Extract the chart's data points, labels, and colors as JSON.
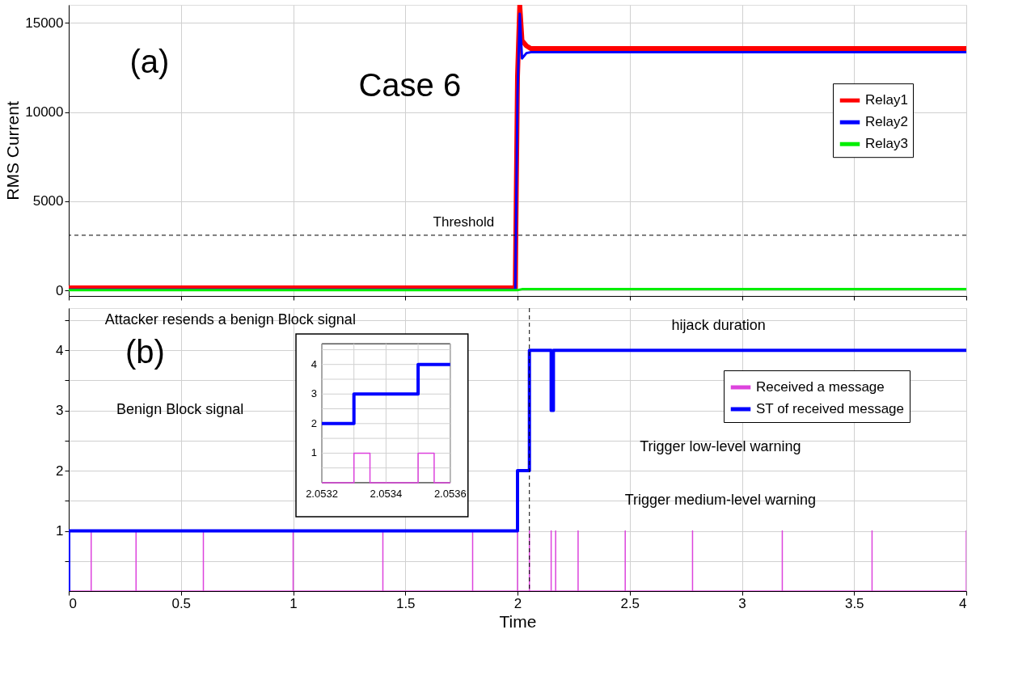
{
  "chart_data": [
    {
      "type": "line",
      "ylabel": "RMS Current",
      "xlim": [
        0,
        4
      ],
      "xticks": [
        0,
        0.5,
        1,
        1.5,
        2,
        2.5,
        3,
        3.5,
        4
      ],
      "ylim": [
        -300,
        16000
      ],
      "yticks": [
        0,
        5000,
        10000,
        15000
      ],
      "grid": true,
      "legend": "top right",
      "tick_labels": "y",
      "series": [
        {
          "name": "Relay1",
          "color": "#ff0000",
          "x": [
            0,
            1.99,
            2.0,
            2.01,
            2.02,
            2.04,
            2.06,
            4
          ],
          "values": [
            150,
            150,
            12000,
            16000,
            14000,
            13700,
            13550,
            13550
          ]
        },
        {
          "name": "Relay2",
          "color": "#0000ff",
          "x": [
            0,
            1.99,
            2.0,
            2.01,
            2.02,
            2.04,
            2.06,
            4
          ],
          "values": [
            50,
            50,
            11000,
            15500,
            13000,
            13300,
            13350,
            13350
          ]
        },
        {
          "name": "Relay3",
          "color": "#00ee00",
          "x": [
            0,
            2.0,
            2.02,
            4
          ],
          "values": [
            30,
            30,
            80,
            80
          ]
        }
      ],
      "ref_lines": [
        {
          "axis": "y",
          "value": 3100,
          "label": "Threshold",
          "color": "#000000",
          "line_style": "dashed"
        }
      ],
      "annotations": [
        "(a)",
        "Case 6"
      ]
    },
    {
      "type": "line",
      "xlabel": "Time",
      "xlim": [
        0,
        4
      ],
      "xticks": [
        0,
        0.5,
        1,
        1.5,
        2,
        2.5,
        3,
        3.5,
        4
      ],
      "ylim": [
        0,
        4.7
      ],
      "yticks": [
        {
          "value": 0.5,
          "label": null
        },
        1,
        {
          "value": 1.5,
          "label": null
        },
        2,
        {
          "value": 2.5,
          "label": null
        },
        3,
        {
          "value": 3.5,
          "label": null
        },
        4,
        {
          "value": 4.5,
          "label": null
        }
      ],
      "grid": true,
      "legend": "right",
      "series": [
        {
          "name": "Received a message",
          "color": "#dd44dd",
          "x": [
            0,
            0.1,
            0.1,
            0.1,
            0.3,
            0.3,
            0.3,
            0.6,
            0.6,
            0.6,
            1.0,
            1.0,
            1.0,
            1.4,
            1.4,
            1.4,
            1.8,
            1.8,
            1.8,
            2.0,
            2.0,
            2.0,
            2.053,
            2.053,
            2.053,
            2.15,
            2.15,
            2.15,
            2.17,
            2.17,
            2.17,
            2.27,
            2.27,
            2.27,
            2.48,
            2.48,
            2.48,
            2.78,
            2.78,
            2.78,
            3.18,
            3.18,
            3.18,
            3.58,
            3.58,
            3.58,
            4.0,
            4.0,
            4.0
          ],
          "values": [
            0,
            0,
            1,
            0,
            0,
            1,
            0,
            0,
            1,
            0,
            0,
            1,
            0,
            0,
            1,
            0,
            0,
            1,
            0,
            0,
            1,
            0,
            0,
            1,
            0,
            0,
            1,
            0,
            0,
            1,
            0,
            0,
            1,
            0,
            0,
            1,
            0,
            0,
            1,
            0,
            0,
            1,
            0,
            0,
            1,
            0,
            0,
            1,
            0
          ]
        },
        {
          "name": "ST of received message",
          "type": "step",
          "color": "#0000ff",
          "x": [
            0,
            0,
            2.0,
            2.053,
            2.15,
            2.16,
            4
          ],
          "values": [
            0,
            1,
            2,
            4,
            3,
            4,
            4
          ]
        }
      ],
      "ref_lines": [
        {
          "axis": "x",
          "value": 2.053,
          "color": "#000000",
          "line_style": "dashed"
        }
      ],
      "annotations": [
        "(b)",
        "hijack duration",
        "Attacker resends a benign Block signal",
        "Benign Block signal",
        "Trigger low-level warning",
        "Trigger medium-level warning"
      ]
    },
    {
      "type": "line",
      "xlim": [
        2.0532,
        2.0536
      ],
      "xticks": [
        2.0532,
        {
          "value": 2.0533,
          "label": null
        },
        2.0534,
        {
          "value": 2.0535,
          "label": null
        },
        2.0536
      ],
      "ylim": [
        0,
        4.7
      ],
      "yticks": [
        {
          "value": 0.5,
          "label": null
        },
        1,
        {
          "value": 1.5,
          "label": null
        },
        2,
        {
          "value": 2.5,
          "label": null
        },
        3,
        {
          "value": 3.5,
          "label": null
        },
        4,
        {
          "value": 4.5,
          "label": null
        }
      ],
      "grid": true,
      "series": [
        {
          "color": "#dd44dd",
          "x": [
            2.0532,
            2.0533,
            2.0533,
            2.05335,
            2.05335,
            2.0535,
            2.0535,
            2.05355,
            2.05355,
            2.0536
          ],
          "values": [
            0,
            0,
            1,
            1,
            0,
            0,
            1,
            1,
            0,
            0
          ]
        },
        {
          "type": "step",
          "color": "#0000ff",
          "x": [
            2.0532,
            2.0533,
            2.0535,
            2.0536
          ],
          "values": [
            2,
            3,
            4,
            4
          ]
        }
      ]
    }
  ]
}
